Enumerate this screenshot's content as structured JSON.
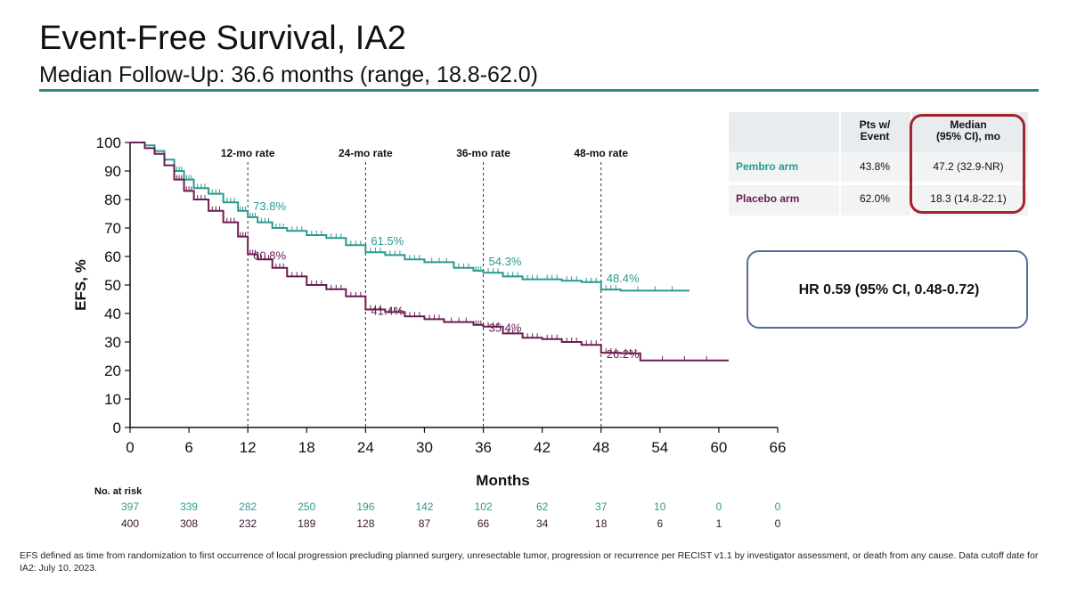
{
  "header": {
    "title": "Event-Free Survival, IA2",
    "subtitle": "Median Follow-Up: 36.6 months (range, 18.8-62.0)"
  },
  "colors": {
    "pembro": "#2a9a8e",
    "placebo": "#6b1d52",
    "accent_rule": "#2f8a88",
    "median_box": "#a2252a",
    "hr_box": "#5a6aa0"
  },
  "chart_data": {
    "type": "line",
    "ylabel": "EFS, %",
    "xlabel": "Months",
    "xlim": [
      0,
      66
    ],
    "ylim": [
      0,
      100
    ],
    "xticks": [
      0,
      6,
      12,
      18,
      24,
      30,
      36,
      42,
      48,
      54,
      60,
      66
    ],
    "yticks": [
      0,
      10,
      20,
      30,
      40,
      50,
      60,
      70,
      80,
      90,
      100
    ],
    "rate_lines": [
      {
        "x": 12,
        "label": "12-mo rate"
      },
      {
        "x": 24,
        "label": "24-mo rate"
      },
      {
        "x": 36,
        "label": "36-mo rate"
      },
      {
        "x": 48,
        "label": "48-mo rate"
      }
    ],
    "series": [
      {
        "name": "Pembro arm",
        "color": "#2a9a8e",
        "points": [
          [
            0,
            100
          ],
          [
            1.5,
            99
          ],
          [
            2.5,
            97
          ],
          [
            3.5,
            94
          ],
          [
            4.5,
            90
          ],
          [
            5.5,
            87
          ],
          [
            6.5,
            84
          ],
          [
            8,
            82
          ],
          [
            9.5,
            79
          ],
          [
            11,
            76
          ],
          [
            12,
            73.8
          ],
          [
            13,
            72
          ],
          [
            14.5,
            70
          ],
          [
            16,
            69
          ],
          [
            18,
            67.5
          ],
          [
            20,
            66.5
          ],
          [
            22,
            64
          ],
          [
            24,
            61.5
          ],
          [
            26,
            60.5
          ],
          [
            28,
            59
          ],
          [
            30,
            58
          ],
          [
            33,
            56
          ],
          [
            35,
            55
          ],
          [
            36,
            54.3
          ],
          [
            38,
            53
          ],
          [
            40,
            52
          ],
          [
            42,
            52
          ],
          [
            44,
            51.5
          ],
          [
            46,
            51
          ],
          [
            48,
            48.4
          ],
          [
            50,
            48
          ],
          [
            57,
            48
          ]
        ],
        "rate_labels": [
          {
            "x": 12,
            "y": 73.8,
            "text": "73.8%"
          },
          {
            "x": 24,
            "y": 61.5,
            "text": "61.5%"
          },
          {
            "x": 36,
            "y": 54.3,
            "text": "54.3%"
          },
          {
            "x": 48,
            "y": 48.4,
            "text": "48.4%"
          }
        ]
      },
      {
        "name": "Placebo arm",
        "color": "#6b1d52",
        "points": [
          [
            0,
            100
          ],
          [
            1.5,
            98
          ],
          [
            2.5,
            96
          ],
          [
            3.5,
            92
          ],
          [
            4.5,
            87
          ],
          [
            5.5,
            83
          ],
          [
            6.5,
            80
          ],
          [
            8,
            76
          ],
          [
            9.5,
            72
          ],
          [
            11,
            67
          ],
          [
            12,
            60.8
          ],
          [
            13,
            59
          ],
          [
            14.5,
            56
          ],
          [
            16,
            53
          ],
          [
            18,
            50
          ],
          [
            20,
            48.5
          ],
          [
            22,
            46
          ],
          [
            24,
            41.4
          ],
          [
            26,
            40.5
          ],
          [
            28,
            39
          ],
          [
            30,
            38
          ],
          [
            32,
            37
          ],
          [
            35,
            36
          ],
          [
            36,
            35.4
          ],
          [
            38,
            33
          ],
          [
            40,
            31.5
          ],
          [
            42,
            31
          ],
          [
            44,
            30
          ],
          [
            46,
            29
          ],
          [
            48,
            26.2
          ],
          [
            50,
            26
          ],
          [
            52,
            23.5
          ],
          [
            61,
            23.5
          ]
        ],
        "rate_labels": [
          {
            "x": 12,
            "y": 60.8,
            "text": "60.8%"
          },
          {
            "x": 24,
            "y": 41.4,
            "text": "41.4%"
          },
          {
            "x": 36,
            "y": 35.4,
            "text": "35.4%"
          },
          {
            "x": 48,
            "y": 26.2,
            "text": "26.2%"
          }
        ]
      }
    ],
    "at_risk": {
      "label": "No. at risk",
      "pembro": [
        "397",
        "339",
        "282",
        "250",
        "196",
        "142",
        "102",
        "62",
        "37",
        "10",
        "0",
        "0"
      ],
      "placebo": [
        "400",
        "308",
        "232",
        "189",
        "128",
        "87",
        "66",
        "34",
        "18",
        "6",
        "1",
        "0"
      ]
    }
  },
  "summary_table": {
    "col1": "Pts w/\nEvent",
    "col2": "Median\n(95% CI), mo",
    "rows": [
      {
        "label": "Pembro arm",
        "event": "43.8%",
        "median": "47.2 (32.9-NR)"
      },
      {
        "label": "Placebo arm",
        "event": "62.0%",
        "median": "18.3 (14.8-22.1)"
      }
    ]
  },
  "hr_text": "HR 0.59 (95% CI, 0.48-0.72)",
  "footnote": "EFS defined as time from randomization to first occurrence of local progression precluding planned surgery, unresectable tumor, progression or recurrence per RECIST v1.1 by investigator assessment, or death from any cause. Data cutoff date for IA2: July 10, 2023."
}
